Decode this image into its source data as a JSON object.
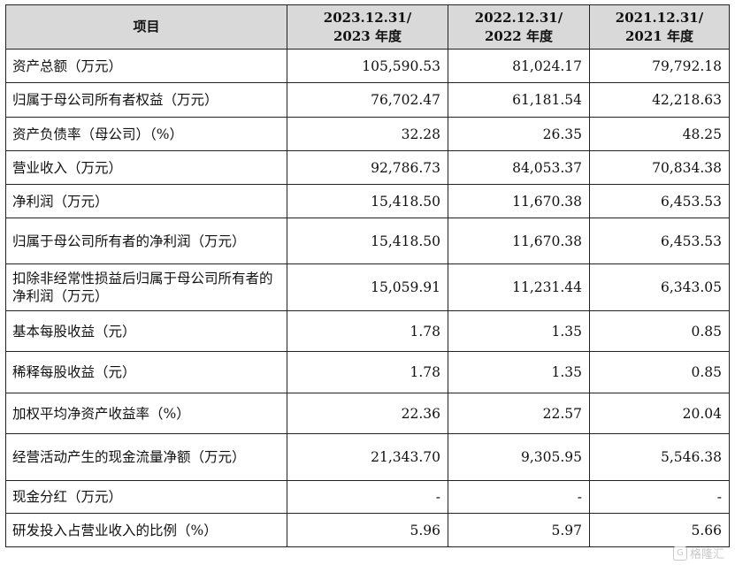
{
  "table": {
    "headers": [
      {
        "line1": "项目",
        "line2": ""
      },
      {
        "line1": "2023.12.31/",
        "line2": "2023 年度"
      },
      {
        "line1": "2022.12.31/",
        "line2": "2022 年度"
      },
      {
        "line1": "2021.12.31/",
        "line2": "2021 年度"
      }
    ],
    "rows": [
      {
        "label": "资产总额（万元）",
        "v2023": "105,590.53",
        "v2022": "81,024.17",
        "v2021": "79,792.18"
      },
      {
        "label": "归属于母公司所有者权益（万元）",
        "v2023": "76,702.47",
        "v2022": "61,181.54",
        "v2021": "42,218.63"
      },
      {
        "label": "资产负债率（母公司）（%）",
        "v2023": "32.28",
        "v2022": "26.35",
        "v2021": "48.25"
      },
      {
        "label": "营业收入（万元）",
        "v2023": "92,786.73",
        "v2022": "84,053.37",
        "v2021": "70,834.38"
      },
      {
        "label": "净利润（万元）",
        "v2023": "15,418.50",
        "v2022": "11,670.38",
        "v2021": "6,453.53"
      },
      {
        "label": "归属于母公司所有者的净利润（万元）",
        "v2023": "15,418.50",
        "v2022": "11,670.38",
        "v2021": "6,453.53"
      },
      {
        "label": "扣除非经常性损益后归属于母公司所有者的净利润（万元）",
        "v2023": "15,059.91",
        "v2022": "11,231.44",
        "v2021": "6,343.05"
      },
      {
        "label": "基本每股收益（元）",
        "v2023": "1.78",
        "v2022": "1.35",
        "v2021": "0.85"
      },
      {
        "label": "稀释每股收益（元）",
        "v2023": "1.78",
        "v2022": "1.35",
        "v2021": "0.85"
      },
      {
        "label": "加权平均净资产收益率（%）",
        "v2023": "22.36",
        "v2022": "22.57",
        "v2021": "20.04"
      },
      {
        "label": "经营活动产生的现金流量净额（万元）",
        "v2023": "21,343.70",
        "v2022": "9,305.95",
        "v2021": "5,546.38"
      },
      {
        "label": "现金分红（万元）",
        "v2023": "-",
        "v2022": "-",
        "v2021": "-"
      },
      {
        "label": "研发投入占营业收入的比例（%）",
        "v2023": "5.96",
        "v2022": "5.97",
        "v2021": "5.66"
      }
    ]
  },
  "watermark": {
    "icon": "logo-icon",
    "text": "格隆汇"
  }
}
